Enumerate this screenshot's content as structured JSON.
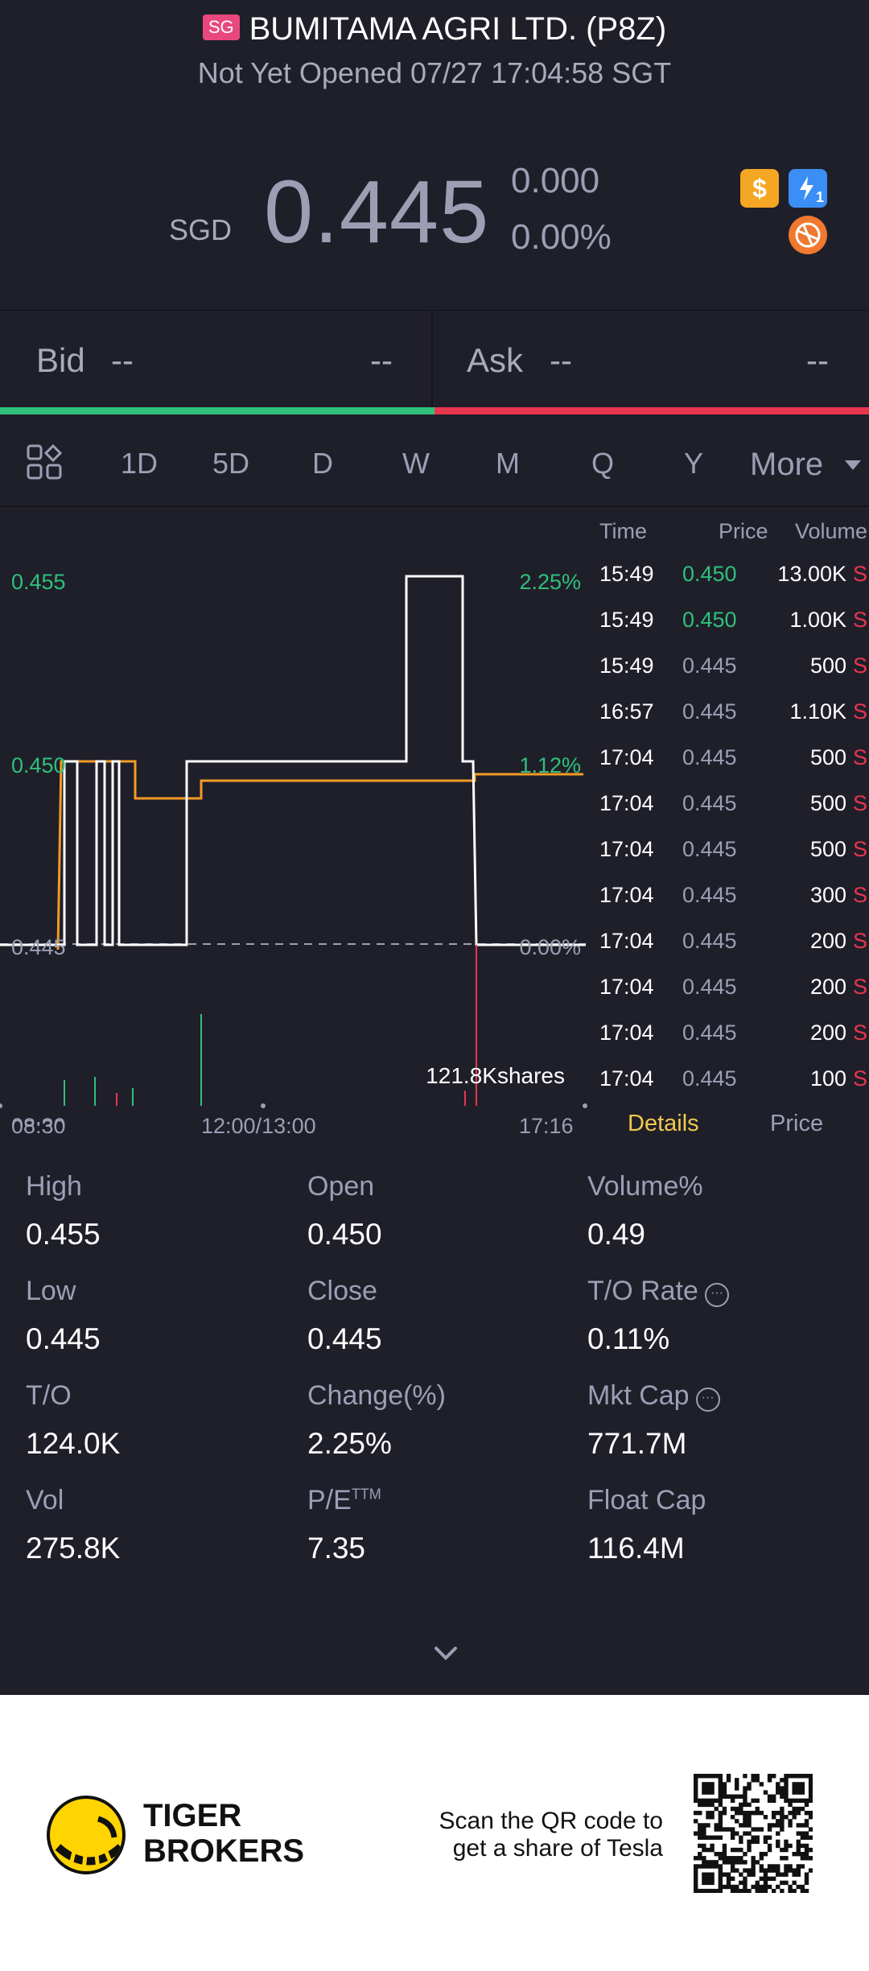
{
  "header": {
    "market_badge": "SG",
    "title": "BUMITAMA AGRI LTD. (P8Z)",
    "status": "Not Yet Opened 07/27 17:04:58 SGT",
    "currency": "SGD",
    "price": "0.445",
    "change": "0.000",
    "change_pct": "0.00%",
    "icons": [
      "dollar-icon",
      "flash-icon",
      "orange-badge-icon"
    ],
    "flash_icon_sub": "1"
  },
  "bidask": {
    "bid_label": "Bid",
    "bid_price": "--",
    "bid_size": "--",
    "ask_label": "Ask",
    "ask_price": "--",
    "ask_size": "--",
    "colors": {
      "bid": "#2fc07b",
      "ask": "#e8364f"
    }
  },
  "tabs": [
    "1D",
    "5D",
    "D",
    "W",
    "M",
    "Q",
    "Y",
    "More"
  ],
  "active_tab": "1D",
  "chart": {
    "price_labels": [
      "0.455",
      "0.450",
      "0.445"
    ],
    "pct_labels": [
      "2.25%",
      "1.12%",
      "0.00%"
    ],
    "time_labels": [
      "08:30",
      "12:00/13:00",
      "17:16"
    ],
    "volume_label": "121.8Kshares",
    "colors": {
      "price_line": "#ffffff",
      "avg_line": "#f29b26",
      "up": "#2fc07b",
      "down": "#e8364f"
    }
  },
  "trades": {
    "headers": {
      "time": "Time",
      "price": "Price",
      "volume": "Volume"
    },
    "rows": [
      {
        "time": "15:49",
        "price": "0.450",
        "volume": "13.00K",
        "side": "S",
        "up": true
      },
      {
        "time": "15:49",
        "price": "0.450",
        "volume": "1.00K",
        "side": "S",
        "up": true
      },
      {
        "time": "15:49",
        "price": "0.445",
        "volume": "500",
        "side": "S",
        "up": false
      },
      {
        "time": "16:57",
        "price": "0.445",
        "volume": "1.10K",
        "side": "S",
        "up": false
      },
      {
        "time": "17:04",
        "price": "0.445",
        "volume": "500",
        "side": "S",
        "up": false
      },
      {
        "time": "17:04",
        "price": "0.445",
        "volume": "500",
        "side": "S",
        "up": false
      },
      {
        "time": "17:04",
        "price": "0.445",
        "volume": "500",
        "side": "S",
        "up": false
      },
      {
        "time": "17:04",
        "price": "0.445",
        "volume": "300",
        "side": "S",
        "up": false
      },
      {
        "time": "17:04",
        "price": "0.445",
        "volume": "200",
        "side": "S",
        "up": false
      },
      {
        "time": "17:04",
        "price": "0.445",
        "volume": "200",
        "side": "S",
        "up": false
      },
      {
        "time": "17:04",
        "price": "0.445",
        "volume": "200",
        "side": "S",
        "up": false
      },
      {
        "time": "17:04",
        "price": "0.445",
        "volume": "100",
        "side": "S",
        "up": false
      }
    ]
  },
  "detail_tabs": {
    "details": "Details",
    "price": "Price"
  },
  "stats": {
    "high": {
      "label": "High",
      "value": "0.455"
    },
    "open": {
      "label": "Open",
      "value": "0.450"
    },
    "volume_pct": {
      "label": "Volume%",
      "value": "0.49"
    },
    "low": {
      "label": "Low",
      "value": "0.445"
    },
    "close": {
      "label": "Close",
      "value": "0.445"
    },
    "to_rate": {
      "label": "T/O Rate",
      "value": "0.11%"
    },
    "to": {
      "label": "T/O",
      "value": "124.0K"
    },
    "change": {
      "label": "Change(%)",
      "value": "2.25%"
    },
    "mkt_cap": {
      "label": "Mkt Cap",
      "value": "771.7M"
    },
    "vol": {
      "label": "Vol",
      "value": "275.8K"
    },
    "pe": {
      "label": "P/E",
      "sup": "TTM",
      "value": "7.35"
    },
    "float_cap": {
      "label": "Float Cap",
      "value": "116.4M"
    },
    "info_glyph": "···"
  },
  "footer": {
    "logo_line1": "TIGER",
    "logo_line2": "BROKERS",
    "scan_line1": "Scan the QR code to",
    "scan_line2": "get a share of Tesla"
  }
}
